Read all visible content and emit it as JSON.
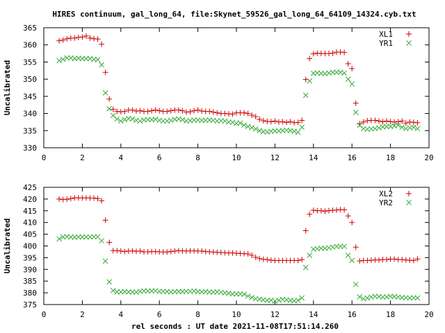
{
  "title": "HIRES continuum, gal_long_64, file:Skynet_59526_gal_long_64_64109_14324.cyb.txt",
  "xlabel": "rel seconds : UT date 2021-11-08T17:51:14.260",
  "colors": {
    "series1": "#cc0000",
    "series2": "#33aa33"
  },
  "chart_data": [
    {
      "type": "scatter",
      "ylabel": "Uncalibrated",
      "xlim": [
        0,
        20
      ],
      "ylim": [
        330,
        365
      ],
      "xticks": [
        0,
        2,
        4,
        6,
        8,
        10,
        12,
        14,
        16,
        18,
        20
      ],
      "yticks": [
        330,
        335,
        340,
        345,
        350,
        355,
        360,
        365
      ],
      "legend_position": "top-right",
      "grid": false,
      "series": [
        {
          "name": "XL1",
          "marker": "+",
          "color": "#cc0000",
          "x": [
            0.8,
            1.0,
            1.2,
            1.4,
            1.6,
            1.8,
            2.0,
            2.2,
            2.4,
            2.6,
            2.8,
            3.0,
            3.2,
            3.4,
            3.6,
            3.8,
            4.0,
            4.2,
            4.4,
            4.6,
            4.8,
            5.0,
            5.2,
            5.4,
            5.6,
            5.8,
            6.0,
            6.2,
            6.4,
            6.6,
            6.8,
            7.0,
            7.2,
            7.4,
            7.6,
            7.8,
            8.0,
            8.2,
            8.4,
            8.6,
            8.8,
            9.0,
            9.2,
            9.4,
            9.6,
            9.8,
            10.0,
            10.2,
            10.4,
            10.6,
            10.8,
            11.0,
            11.2,
            11.4,
            11.6,
            11.8,
            12.0,
            12.2,
            12.4,
            12.6,
            12.8,
            13.0,
            13.2,
            13.4,
            13.6,
            13.8,
            14.0,
            14.2,
            14.4,
            14.6,
            14.8,
            15.0,
            15.2,
            15.4,
            15.6,
            15.8,
            16.0,
            16.2,
            16.4,
            16.6,
            16.8,
            17.0,
            17.2,
            17.4,
            17.6,
            17.8,
            18.0,
            18.2,
            18.4,
            18.6,
            18.8,
            19.0,
            19.2,
            19.4
          ],
          "y": [
            361.2,
            361.4,
            361.8,
            362.0,
            362.0,
            362.2,
            362.3,
            362.6,
            362.0,
            361.8,
            361.7,
            360.2,
            352.0,
            344.2,
            341.2,
            340.6,
            340.5,
            340.6,
            341.0,
            341.0,
            340.7,
            340.8,
            340.6,
            340.6,
            340.8,
            341.0,
            340.8,
            340.6,
            340.6,
            340.8,
            341.0,
            341.0,
            340.8,
            340.4,
            340.5,
            340.8,
            341.0,
            340.7,
            340.6,
            340.6,
            340.4,
            340.2,
            340.0,
            340.0,
            339.9,
            339.8,
            340.2,
            340.2,
            340.2,
            340.0,
            339.5,
            339.1,
            338.3,
            337.9,
            337.7,
            337.6,
            337.8,
            337.5,
            337.6,
            337.4,
            337.6,
            337.3,
            337.4,
            338.0,
            349.9,
            356.0,
            357.4,
            357.6,
            357.5,
            357.5,
            357.5,
            357.6,
            357.9,
            357.9,
            357.8,
            354.5,
            353.1,
            343.0,
            337.0,
            337.5,
            337.9,
            338.0,
            338.0,
            337.8,
            337.6,
            337.8,
            337.6,
            337.5,
            337.6,
            337.8,
            337.2,
            337.5,
            337.4,
            337.3
          ]
        },
        {
          "name": "YR1",
          "marker": "x",
          "color": "#33aa33",
          "x": [
            0.8,
            1.0,
            1.2,
            1.4,
            1.6,
            1.8,
            2.0,
            2.2,
            2.4,
            2.6,
            2.8,
            3.0,
            3.2,
            3.4,
            3.6,
            3.8,
            4.0,
            4.2,
            4.4,
            4.6,
            4.8,
            5.0,
            5.2,
            5.4,
            5.6,
            5.8,
            6.0,
            6.2,
            6.4,
            6.6,
            6.8,
            7.0,
            7.2,
            7.4,
            7.6,
            7.8,
            8.0,
            8.2,
            8.4,
            8.6,
            8.8,
            9.0,
            9.2,
            9.4,
            9.6,
            9.8,
            10.0,
            10.2,
            10.4,
            10.6,
            10.8,
            11.0,
            11.2,
            11.4,
            11.6,
            11.8,
            12.0,
            12.2,
            12.4,
            12.6,
            12.8,
            13.0,
            13.2,
            13.4,
            13.6,
            13.8,
            14.0,
            14.2,
            14.4,
            14.6,
            14.8,
            15.0,
            15.2,
            15.4,
            15.6,
            15.8,
            16.0,
            16.2,
            16.4,
            16.6,
            16.8,
            17.0,
            17.2,
            17.4,
            17.6,
            17.8,
            18.0,
            18.2,
            18.4,
            18.6,
            18.8,
            19.0,
            19.2,
            19.4
          ],
          "y": [
            355.4,
            355.8,
            356.2,
            356.2,
            356.0,
            356.1,
            356.0,
            356.0,
            356.0,
            355.8,
            355.7,
            354.2,
            346.0,
            341.4,
            339.4,
            338.4,
            337.8,
            338.2,
            338.5,
            338.4,
            338.0,
            337.8,
            338.1,
            338.2,
            338.2,
            338.3,
            338.0,
            337.8,
            337.8,
            338.0,
            338.3,
            338.4,
            338.2,
            337.8,
            337.9,
            338.1,
            338.1,
            338.0,
            338.0,
            338.1,
            338.0,
            337.8,
            337.9,
            337.8,
            337.5,
            337.4,
            337.1,
            337.2,
            336.6,
            336.2,
            335.9,
            335.5,
            335.0,
            334.7,
            334.6,
            334.8,
            334.9,
            334.9,
            335.0,
            335.1,
            335.0,
            334.8,
            334.5,
            336.0,
            345.3,
            349.5,
            351.7,
            351.8,
            351.7,
            351.6,
            351.8,
            352.0,
            352.0,
            352.0,
            351.8,
            350.0,
            348.6,
            340.3,
            336.6,
            335.6,
            335.4,
            335.5,
            335.6,
            335.8,
            336.1,
            336.2,
            336.2,
            336.4,
            336.6,
            336.0,
            335.6,
            335.8,
            336.0,
            335.6
          ]
        }
      ]
    },
    {
      "type": "scatter",
      "ylabel": "Uncalibrated",
      "xlim": [
        0,
        20
      ],
      "ylim": [
        375,
        425
      ],
      "xticks": [
        0,
        2,
        4,
        6,
        8,
        10,
        12,
        14,
        16,
        18,
        20
      ],
      "yticks": [
        375,
        380,
        385,
        390,
        395,
        400,
        405,
        410,
        415,
        420,
        425
      ],
      "legend_position": "top-right",
      "grid": false,
      "series": [
        {
          "name": "XL2",
          "marker": "+",
          "color": "#cc0000",
          "x": [
            0.8,
            1.0,
            1.2,
            1.4,
            1.6,
            1.8,
            2.0,
            2.2,
            2.4,
            2.6,
            2.8,
            3.0,
            3.2,
            3.4,
            3.6,
            3.8,
            4.0,
            4.2,
            4.4,
            4.6,
            4.8,
            5.0,
            5.2,
            5.4,
            5.6,
            5.8,
            6.0,
            6.2,
            6.4,
            6.6,
            6.8,
            7.0,
            7.2,
            7.4,
            7.6,
            7.8,
            8.0,
            8.2,
            8.4,
            8.6,
            8.8,
            9.0,
            9.2,
            9.4,
            9.6,
            9.8,
            10.0,
            10.2,
            10.4,
            10.6,
            10.8,
            11.0,
            11.2,
            11.4,
            11.6,
            11.8,
            12.0,
            12.2,
            12.4,
            12.6,
            12.8,
            13.0,
            13.2,
            13.4,
            13.6,
            13.8,
            14.0,
            14.2,
            14.4,
            14.6,
            14.8,
            15.0,
            15.2,
            15.4,
            15.6,
            15.8,
            16.0,
            16.2,
            16.4,
            16.6,
            16.8,
            17.0,
            17.2,
            17.4,
            17.6,
            17.8,
            18.0,
            18.2,
            18.4,
            18.6,
            18.8,
            19.0,
            19.2,
            19.4
          ],
          "y": [
            420.0,
            419.8,
            419.9,
            420.2,
            420.5,
            420.5,
            420.5,
            420.5,
            420.4,
            420.4,
            420.2,
            419.3,
            411.0,
            401.5,
            398.0,
            398.0,
            397.8,
            397.6,
            397.8,
            397.9,
            397.7,
            397.8,
            397.5,
            397.5,
            397.6,
            397.6,
            397.5,
            397.4,
            397.4,
            397.6,
            397.8,
            398.0,
            397.9,
            397.8,
            397.9,
            397.9,
            397.8,
            397.8,
            397.6,
            397.5,
            397.4,
            397.3,
            397.2,
            397.1,
            397.0,
            397.0,
            396.9,
            396.8,
            396.7,
            396.6,
            396.0,
            395.2,
            394.6,
            394.3,
            394.2,
            393.9,
            393.8,
            393.8,
            393.8,
            393.8,
            393.8,
            393.8,
            393.8,
            394.2,
            406.5,
            413.5,
            415.2,
            415.0,
            415.0,
            414.8,
            415.0,
            415.2,
            415.3,
            415.5,
            415.4,
            412.8,
            410.0,
            399.5,
            393.6,
            393.8,
            393.8,
            393.9,
            394.0,
            394.0,
            394.2,
            394.2,
            394.4,
            394.4,
            394.2,
            394.2,
            394.0,
            393.9,
            393.8,
            394.4
          ]
        },
        {
          "name": "YR2",
          "marker": "x",
          "color": "#33aa33",
          "x": [
            0.8,
            1.0,
            1.2,
            1.4,
            1.6,
            1.8,
            2.0,
            2.2,
            2.4,
            2.6,
            2.8,
            3.0,
            3.2,
            3.4,
            3.6,
            3.8,
            4.0,
            4.2,
            4.4,
            4.6,
            4.8,
            5.0,
            5.2,
            5.4,
            5.6,
            5.8,
            6.0,
            6.2,
            6.4,
            6.6,
            6.8,
            7.0,
            7.2,
            7.4,
            7.6,
            7.8,
            8.0,
            8.2,
            8.4,
            8.6,
            8.8,
            9.0,
            9.2,
            9.4,
            9.6,
            9.8,
            10.0,
            10.2,
            10.4,
            10.6,
            10.8,
            11.0,
            11.2,
            11.4,
            11.6,
            11.8,
            12.0,
            12.2,
            12.4,
            12.6,
            12.8,
            13.0,
            13.2,
            13.4,
            13.6,
            13.8,
            14.0,
            14.2,
            14.4,
            14.6,
            14.8,
            15.0,
            15.2,
            15.4,
            15.6,
            15.8,
            16.0,
            16.2,
            16.4,
            16.6,
            16.8,
            17.0,
            17.2,
            17.4,
            17.6,
            17.8,
            18.0,
            18.2,
            18.4,
            18.6,
            18.8,
            19.0,
            19.2,
            19.4
          ],
          "y": [
            403.0,
            403.8,
            404.0,
            403.8,
            403.7,
            403.8,
            403.8,
            403.8,
            403.8,
            403.9,
            403.9,
            402.2,
            393.5,
            384.7,
            381.0,
            380.4,
            380.4,
            380.5,
            380.4,
            380.3,
            380.3,
            380.6,
            380.8,
            380.8,
            380.8,
            380.9,
            380.6,
            380.6,
            380.5,
            380.4,
            380.5,
            380.5,
            380.5,
            380.6,
            380.6,
            380.8,
            380.5,
            380.4,
            380.5,
            380.3,
            380.3,
            380.4,
            380.2,
            380.0,
            379.8,
            379.5,
            379.5,
            379.5,
            379.4,
            378.6,
            378.0,
            377.5,
            377.3,
            377.0,
            376.8,
            376.8,
            376.5,
            376.8,
            377.2,
            377.0,
            376.8,
            376.6,
            376.8,
            377.8,
            390.8,
            396.0,
            398.6,
            398.8,
            399.0,
            399.0,
            399.2,
            399.5,
            399.8,
            399.8,
            399.8,
            396.0,
            393.8,
            383.6,
            378.3,
            377.5,
            377.8,
            378.2,
            378.5,
            378.4,
            378.2,
            378.3,
            378.5,
            378.4,
            378.2,
            378.0,
            377.9,
            377.8,
            377.9,
            377.8
          ]
        }
      ]
    }
  ]
}
